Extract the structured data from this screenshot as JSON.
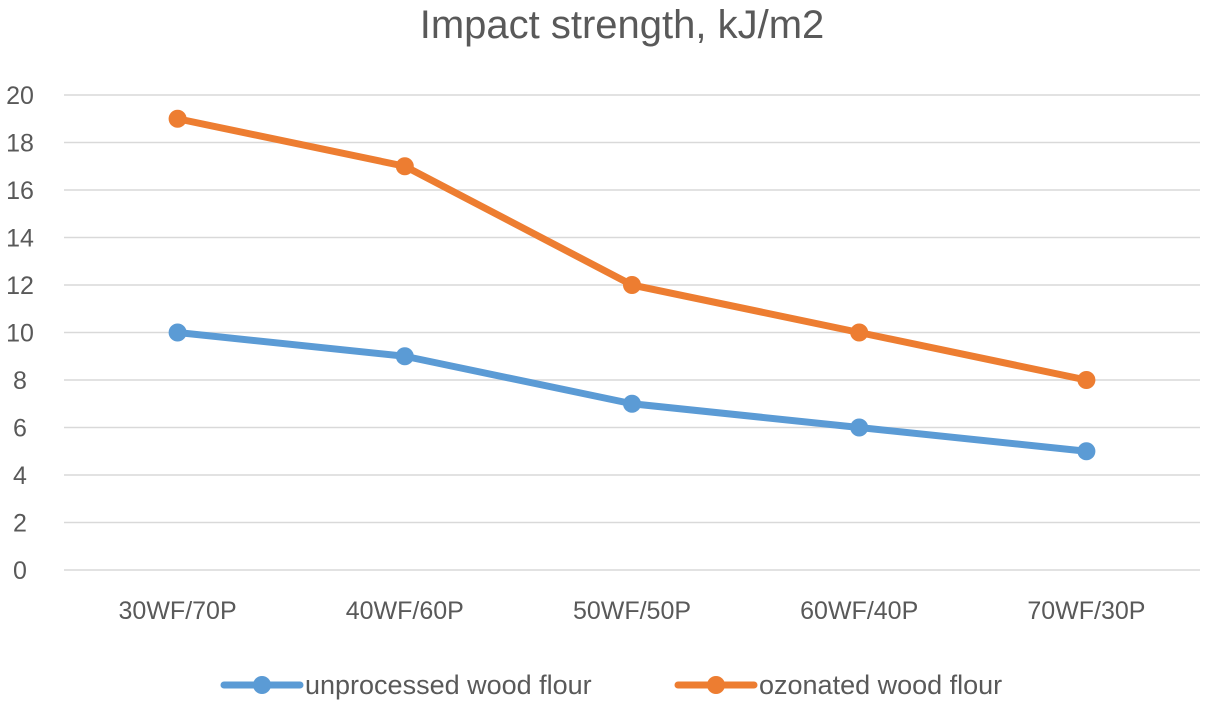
{
  "chart_data": {
    "type": "line",
    "title": "Impact strength, kJ/m2",
    "categories": [
      "30WF/70P",
      "40WF/60P",
      "50WF/50P",
      "60WF/40P",
      "70WF/30P"
    ],
    "series": [
      {
        "name": "unprocessed wood flour",
        "color": "#5b9bd5",
        "values": [
          10,
          9,
          7,
          6,
          5
        ]
      },
      {
        "name": "ozonated wood flour",
        "color": "#ed7d31",
        "values": [
          19,
          17,
          12,
          10,
          8
        ]
      }
    ],
    "ylim": [
      0,
      20
    ],
    "yticks": [
      0,
      2,
      4,
      6,
      8,
      10,
      12,
      14,
      16,
      18,
      20
    ],
    "xlabel": "",
    "ylabel": "",
    "grid": true,
    "legend": "bottom"
  }
}
